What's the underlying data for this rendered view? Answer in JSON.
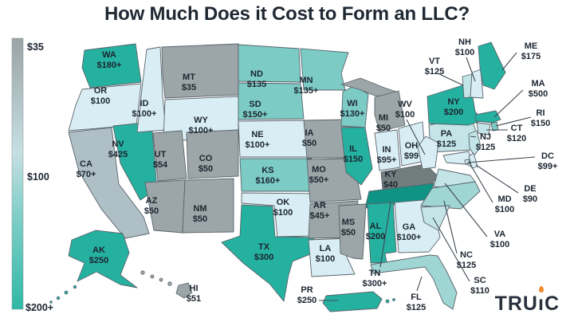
{
  "title": "How Much Does it Cost to Form an LLC?",
  "legend": {
    "top_label": "$35",
    "mid_label": "$100",
    "bottom_label": "$200+",
    "gradient": [
      "#9AA3A6",
      "#C6DFE3",
      "#7FCEC7",
      "#2FB8A6"
    ]
  },
  "logo": {
    "text": "TRUiC",
    "t1": "TRU",
    "i": "ı",
    "t2": "C",
    "flame_color": "#F28A2E"
  },
  "colors": {
    "gray": "#9CA6A8",
    "darkgray": "#727D7D",
    "bluegray": "#AEBFC6",
    "pale": "#D9EEF4",
    "paleteal": "#C4E5E7",
    "lightteal": "#9FD5D2",
    "medteal": "#7CCBC5",
    "teal": "#25B1A0",
    "darkteal": "#0E9384",
    "border": "#5A646C",
    "leader": "#3E4852",
    "label": "#1C2530"
  },
  "chart_data": {
    "type": "heatmap",
    "subtype": "choropleth_us_map",
    "title": "How Much Does it Cost to Form an LLC?",
    "unit": "USD",
    "colorscale": {
      "min_label": "$35",
      "mid_label": "$100",
      "max_label": "$200+"
    },
    "states": [
      {
        "code": "WA",
        "price": "$180+",
        "tier": "teal",
        "label": [
          137,
          72
        ]
      },
      {
        "code": "OR",
        "price": "$100",
        "tier": "pale",
        "label": [
          126,
          117
        ]
      },
      {
        "code": "CA",
        "price": "$70+",
        "tier": "bluegray",
        "label": [
          108,
          209
        ]
      },
      {
        "code": "NV",
        "price": "$425",
        "tier": "teal",
        "label": [
          148,
          184
        ]
      },
      {
        "code": "ID",
        "price": "$100+",
        "tier": "pale",
        "label": [
          181,
          133
        ]
      },
      {
        "code": "MT",
        "price": "$35",
        "tier": "gray",
        "label": [
          237,
          100
        ]
      },
      {
        "code": "WY",
        "price": "$100+",
        "tier": "pale",
        "label": [
          252,
          154
        ]
      },
      {
        "code": "UT",
        "price": "$54",
        "tier": "gray",
        "label": [
          201,
          197
        ]
      },
      {
        "code": "CO",
        "price": "$50",
        "tier": "gray",
        "label": [
          258,
          202
        ]
      },
      {
        "code": "AZ",
        "price": "$50",
        "tier": "gray",
        "label": [
          190,
          255
        ]
      },
      {
        "code": "NM",
        "price": "$50",
        "tier": "gray",
        "label": [
          251,
          265
        ]
      },
      {
        "code": "ND",
        "price": "$135",
        "tier": "medteal",
        "label": [
          322,
          96
        ]
      },
      {
        "code": "SD",
        "price": "$150+",
        "tier": "medteal",
        "label": [
          320,
          134
        ]
      },
      {
        "code": "NE",
        "price": "$100+",
        "tier": "pale",
        "label": [
          323,
          172
        ]
      },
      {
        "code": "KS",
        "price": "$160+",
        "tier": "medteal",
        "label": [
          336,
          217
        ]
      },
      {
        "code": "OK",
        "price": "$100",
        "tier": "pale",
        "label": [
          355,
          257
        ]
      },
      {
        "code": "TX",
        "price": "$300",
        "tier": "teal",
        "label": [
          331,
          313
        ]
      },
      {
        "code": "MN",
        "price": "$135+",
        "tier": "medteal",
        "label": [
          384,
          104
        ]
      },
      {
        "code": "IA",
        "price": "$50",
        "tier": "gray",
        "label": [
          388,
          170
        ]
      },
      {
        "code": "MO",
        "price": "$50+",
        "tier": "gray",
        "label": [
          400,
          216
        ]
      },
      {
        "code": "AR",
        "price": "$45+",
        "tier": "gray",
        "label": [
          401,
          261
        ]
      },
      {
        "code": "LA",
        "price": "$100",
        "tier": "pale",
        "label": [
          408,
          315
        ]
      },
      {
        "code": "WI",
        "price": "$130+",
        "tier": "medteal",
        "label": [
          442,
          133
        ]
      },
      {
        "code": "IL",
        "price": "$150",
        "tier": "teal",
        "label": [
          443,
          190
        ]
      },
      {
        "code": "MS",
        "price": "$50",
        "tier": "gray",
        "label": [
          437,
          282
        ]
      },
      {
        "code": "AL",
        "price": "$200",
        "tier": "teal",
        "label": [
          471,
          287
        ]
      },
      {
        "code": "GA",
        "price": "$100+",
        "tier": "pale",
        "label": [
          513,
          288
        ]
      },
      {
        "code": "MI",
        "price": "$50",
        "tier": "gray",
        "label": [
          481,
          151
        ]
      },
      {
        "code": "IN",
        "price": "$95+",
        "tier": "pale",
        "label": [
          485,
          191
        ]
      },
      {
        "code": "OH",
        "price": "$99",
        "tier": "pale",
        "label": [
          516,
          186
        ]
      },
      {
        "code": "KY",
        "price": "$40",
        "tier": "darkgray",
        "label": [
          490,
          222
        ]
      },
      {
        "code": "TN",
        "price": "$300+",
        "tier": "darkteal",
        "label": [
          470,
          346
        ],
        "leader": [
          477,
          335,
          490,
          254
        ]
      },
      {
        "code": "WV",
        "price": "$100",
        "tier": "pale",
        "label": [
          508,
          134
        ],
        "leader": [
          510,
          150,
          533,
          194
        ]
      },
      {
        "code": "VA",
        "price": "$100",
        "tier": "paleteal",
        "label": [
          627,
          297
        ],
        "leader": [
          611,
          297,
          558,
          230
        ]
      },
      {
        "code": "NC",
        "price": "$125",
        "tier": "lightteal",
        "label": [
          585,
          323
        ],
        "leader": [
          573,
          318,
          557,
          252
        ]
      },
      {
        "code": "SC",
        "price": "$110",
        "tier": "paleteal",
        "label": [
          602,
          355
        ],
        "leader": [
          589,
          353,
          543,
          273
        ]
      },
      {
        "code": "PA",
        "price": "$125",
        "tier": "paleteal",
        "label": [
          560,
          171
        ]
      },
      {
        "code": "NY",
        "price": "$200",
        "tier": "teal",
        "label": [
          569,
          131
        ]
      },
      {
        "code": "VT",
        "price": "$125",
        "tier": "paleteal",
        "label": [
          545,
          80
        ],
        "leader": [
          549,
          92,
          581,
          107
        ]
      },
      {
        "code": "NH",
        "price": "$100",
        "tier": "pale",
        "label": [
          583,
          56
        ],
        "leader": [
          585,
          72,
          596,
          102
        ]
      },
      {
        "code": "ME",
        "price": "$175",
        "tier": "teal",
        "label": [
          666,
          61
        ],
        "leader": [
          648,
          66,
          630,
          88
        ]
      },
      {
        "code": "MA",
        "price": "$500",
        "tier": "teal",
        "label": [
          675,
          108
        ],
        "leader": [
          656,
          113,
          620,
          147
        ]
      },
      {
        "code": "RI",
        "price": "$150",
        "tier": "medteal",
        "label": [
          678,
          145
        ],
        "leader": [
          666,
          147,
          622,
          158
        ]
      },
      {
        "code": "CT",
        "price": "$120",
        "tier": "paleteal",
        "label": [
          648,
          164
        ],
        "leader": [
          637,
          163,
          610,
          163
        ]
      },
      {
        "code": "NJ",
        "price": "$125",
        "tier": "paleteal",
        "label": [
          609,
          175
        ],
        "leader": [
          590,
          171,
          597,
          172
        ]
      },
      {
        "code": "DC",
        "price": "$99+",
        "tier": "pale",
        "label": [
          687,
          199
        ],
        "leader": [
          671,
          197,
          586,
          204
        ]
      },
      {
        "code": "DE",
        "price": "$90",
        "tier": "pale",
        "label": [
          665,
          240
        ],
        "leader": [
          650,
          242,
          597,
          207
        ]
      },
      {
        "code": "MD",
        "price": "$100",
        "tier": "pale",
        "label": [
          633,
          253
        ],
        "leader": [
          618,
          254,
          588,
          203
        ]
      },
      {
        "code": "FL",
        "price": "$125",
        "tier": "lightteal",
        "label": [
          522,
          376
        ],
        "leader": [
          523,
          365,
          529,
          347
        ]
      },
      {
        "code": "AK",
        "price": "$250",
        "tier": "teal",
        "label": [
          124,
          317
        ]
      },
      {
        "code": "HI",
        "price": "$51",
        "tier": "gray",
        "label": [
          243,
          365
        ]
      },
      {
        "code": "PR",
        "price": "$250",
        "tier": "teal",
        "label": [
          385,
          367
        ],
        "leader": [
          400,
          377,
          424,
          377
        ]
      }
    ]
  }
}
